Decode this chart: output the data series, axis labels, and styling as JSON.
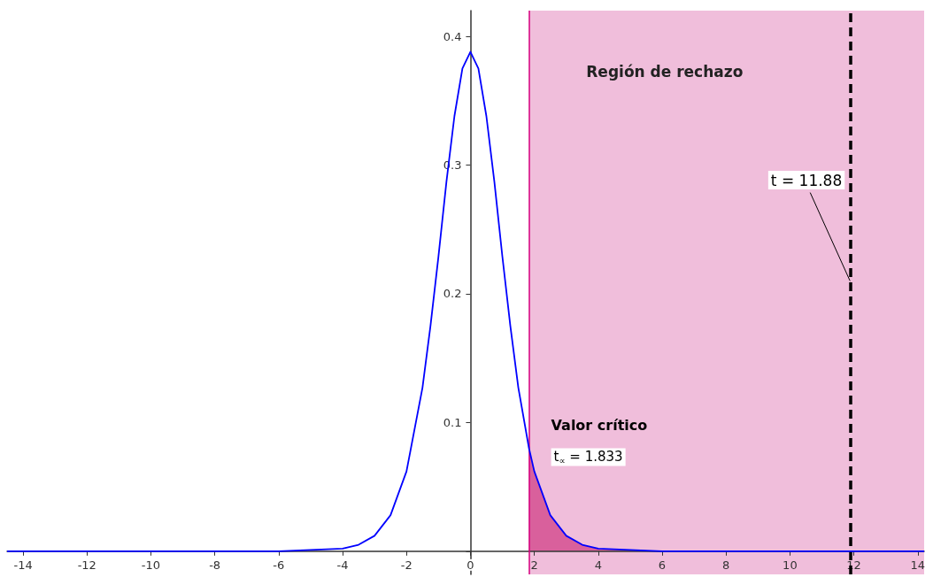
{
  "chart_data": {
    "type": "line",
    "xlim": [
      -14.5,
      14.2
    ],
    "ylim": [
      -0.018,
      0.42
    ],
    "xticks": [
      -14,
      -12,
      -10,
      -8,
      -6,
      -4,
      -2,
      0,
      2,
      4,
      6,
      8,
      10,
      12,
      14
    ],
    "yticks": [
      {
        "value": 0,
        "label": null
      },
      0.1,
      0.2,
      0.3,
      0.4
    ],
    "grid": false,
    "marker": "none",
    "series": [
      {
        "color": "#0000ff",
        "x": [
          -14.5,
          -10,
          -6,
          -5,
          -4,
          -3.5,
          -3,
          -2.5,
          -2,
          -1.5,
          -1.25,
          -1,
          -0.75,
          -0.5,
          -0.25,
          0,
          0.25,
          0.5,
          0.75,
          1,
          1.25,
          1.5,
          1.833,
          2,
          2.5,
          3,
          3.5,
          4,
          5,
          6,
          10,
          14.2
        ],
        "values": [
          0,
          0,
          0,
          0.001,
          0.002,
          0.005,
          0.012,
          0.028,
          0.062,
          0.127,
          0.175,
          0.229,
          0.287,
          0.338,
          0.375,
          0.388,
          0.375,
          0.338,
          0.287,
          0.229,
          0.175,
          0.127,
          0.08,
          0.062,
          0.028,
          0.012,
          0.005,
          0.002,
          0.001,
          0,
          0,
          0
        ]
      },
      {
        "type": "area",
        "color": "#d9609c",
        "x": [
          1.833,
          2,
          2.5,
          3,
          3.5,
          4,
          5,
          6,
          10,
          14.2
        ],
        "values": [
          0.08,
          0.062,
          0.028,
          0.012,
          0.005,
          0.002,
          0.001,
          0,
          0,
          0
        ]
      }
    ],
    "bands": [
      {
        "axis": "x",
        "from": 1.833,
        "to": 14.2,
        "label": "Región de rechazo",
        "color": "#f0bedb"
      }
    ],
    "ref_lines": [
      {
        "axis": "x",
        "value": 1.833,
        "label": "Valor crítico",
        "color": "#d6007f",
        "line_style": "solid"
      },
      {
        "axis": "x",
        "value": 11.88,
        "label": "t = 11.88",
        "color": "#000000",
        "line_style": "dashed"
      }
    ],
    "annotations": [
      {
        "text": "t$_{∝}$ = 1.833",
        "x": 1.833,
        "y": 0.08
      }
    ]
  }
}
